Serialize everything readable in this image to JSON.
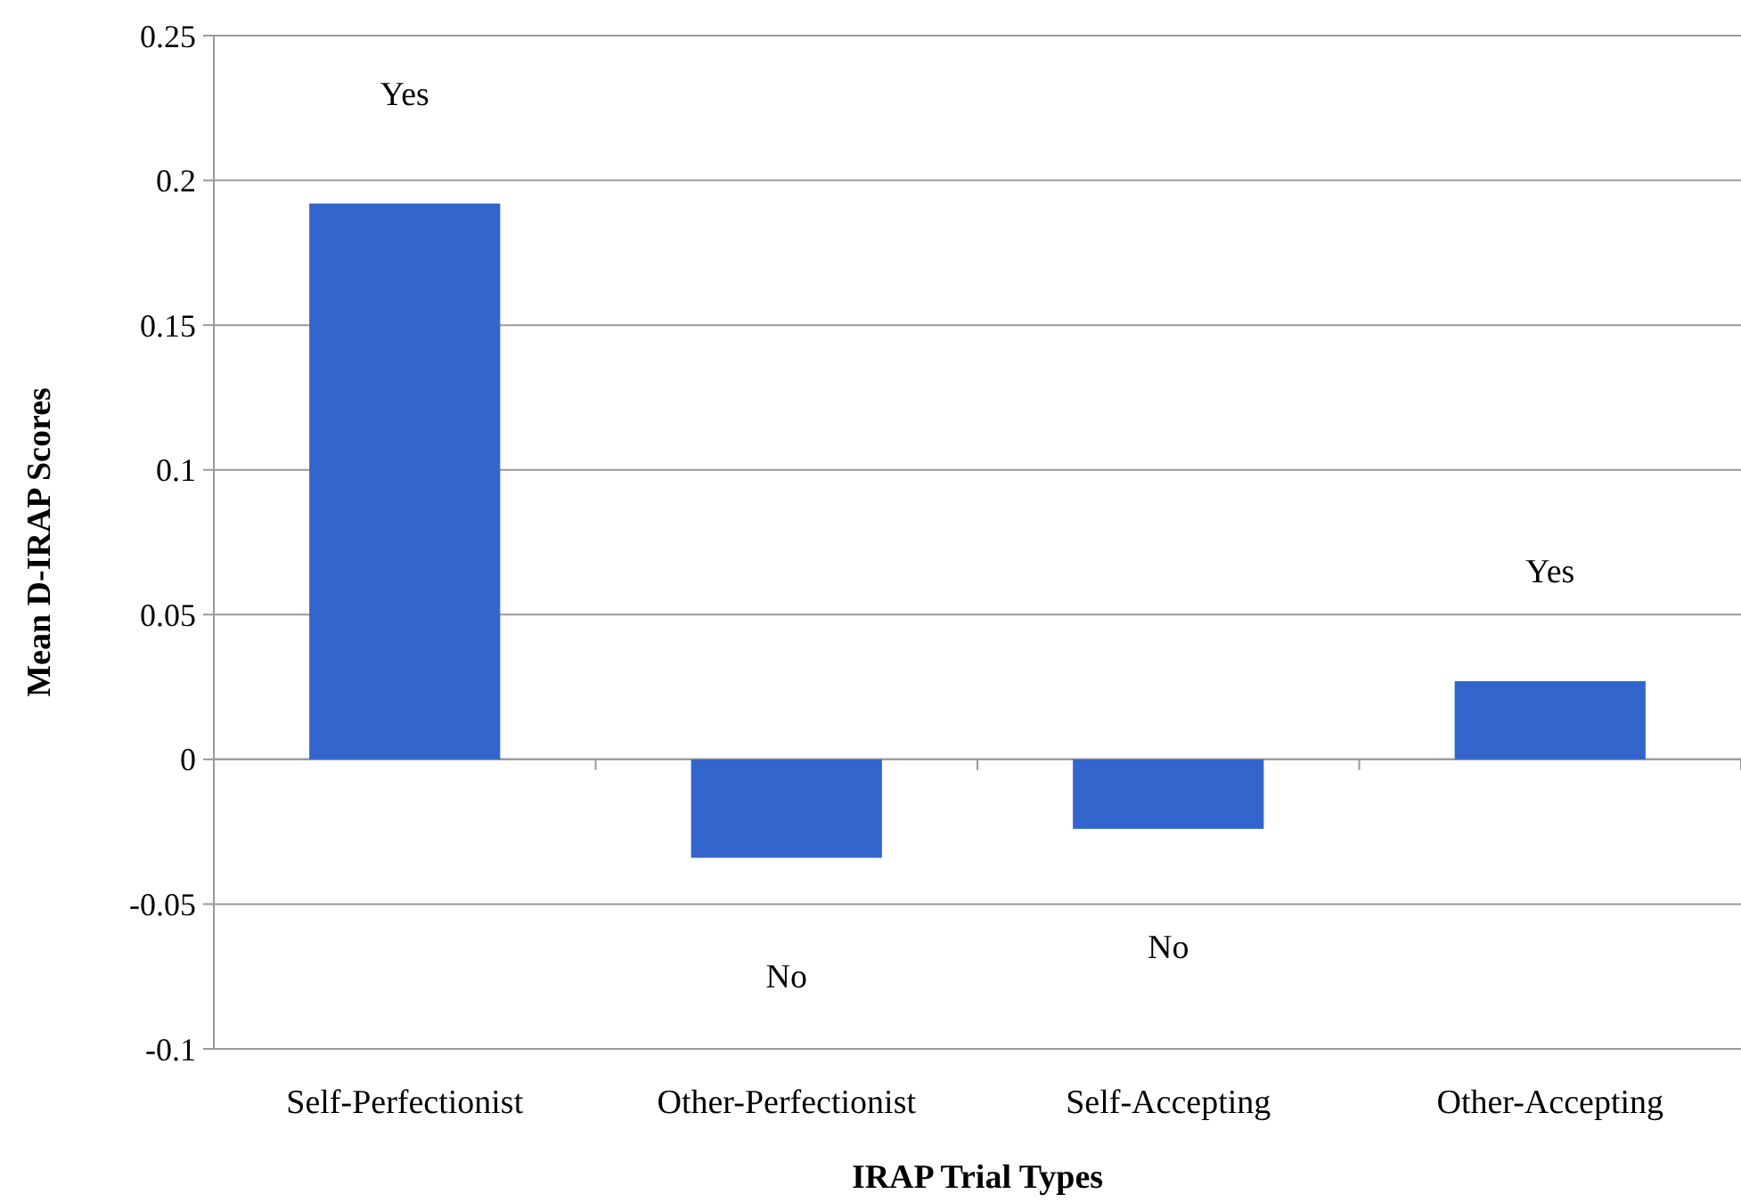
{
  "chart_data": {
    "type": "bar",
    "xlabel": "IRAP Trial Types",
    "ylabel": "Mean D-IRAP Scores",
    "categories": [
      "Self-Perfectionist",
      "Other-Perfectionist",
      "Self-Accepting",
      "Other-Accepting"
    ],
    "values": [
      0.192,
      -0.034,
      -0.024,
      0.027
    ],
    "color": "#3366cc",
    "ylim": [
      -0.1,
      0.25
    ],
    "yticks": [
      -0.1,
      -0.05,
      0,
      0.05,
      0.1,
      0.15,
      0.2,
      0.25
    ],
    "grid": "y",
    "annotations": [
      "Yes",
      "No",
      "No",
      "Yes"
    ]
  }
}
